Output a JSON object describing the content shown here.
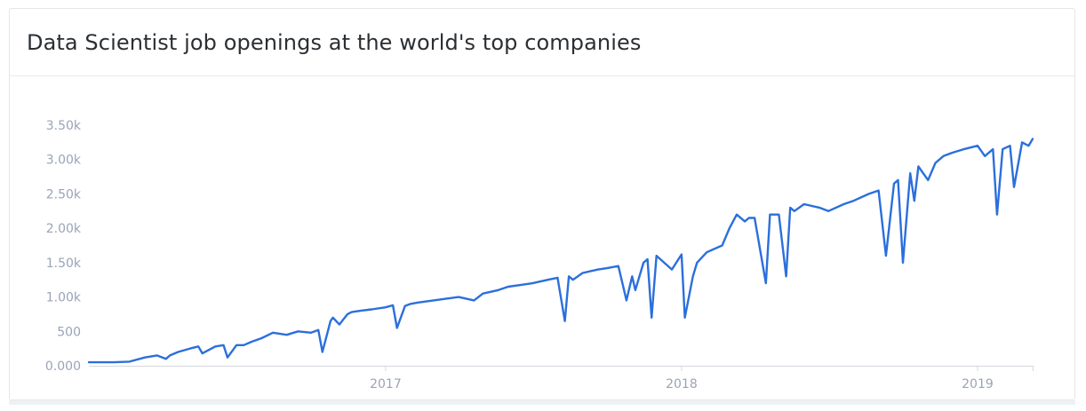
{
  "card": {
    "title": "Data Scientist job openings at the world's top companies"
  },
  "colors": {
    "line": "#2b6fdc",
    "axis_text": "#9aa3b8",
    "axis_line": "#d3d8e0"
  },
  "chart_data": {
    "type": "line",
    "title": "Data Scientist job openings at the world's top companies",
    "xlabel": "",
    "ylabel": "",
    "x_range": [
      "2016-01-01",
      "2019-03-10"
    ],
    "ylim": [
      0,
      3500
    ],
    "y_ticks": [
      0,
      500,
      1000,
      1500,
      2000,
      2500,
      3000,
      3500
    ],
    "y_tick_labels": [
      "0.000",
      "500",
      "1.00k",
      "1.50k",
      "2.00k",
      "2.50k",
      "3.00k",
      "3.50k"
    ],
    "x_ticks": [
      "2017-01-01",
      "2018-01-01",
      "2019-01-01"
    ],
    "x_tick_labels": [
      "2017",
      "2018",
      "2019"
    ],
    "grid": false,
    "legend": "none",
    "series": [
      {
        "x": [
          "2016-01-01",
          "2016-02-01",
          "2016-02-20",
          "2016-03-10",
          "2016-03-25",
          "2016-04-05",
          "2016-04-10",
          "2016-04-20",
          "2016-05-05",
          "2016-05-15",
          "2016-05-20",
          "2016-06-05",
          "2016-06-15",
          "2016-06-20",
          "2016-07-01",
          "2016-07-10",
          "2016-07-20",
          "2016-08-01",
          "2016-08-15",
          "2016-09-01",
          "2016-09-15",
          "2016-10-01",
          "2016-10-10",
          "2016-10-15",
          "2016-10-25",
          "2016-10-28",
          "2016-11-05",
          "2016-11-15",
          "2016-11-20",
          "2016-12-01",
          "2016-12-15",
          "2017-01-01",
          "2017-01-10",
          "2017-01-15",
          "2017-01-25",
          "2017-02-01",
          "2017-02-10",
          "2017-03-01",
          "2017-03-20",
          "2017-04-01",
          "2017-04-20",
          "2017-05-01",
          "2017-05-20",
          "2017-06-01",
          "2017-06-20",
          "2017-07-01",
          "2017-07-20",
          "2017-08-01",
          "2017-08-10",
          "2017-08-15",
          "2017-08-20",
          "2017-09-01",
          "2017-09-20",
          "2017-10-01",
          "2017-10-15",
          "2017-10-25",
          "2017-11-01",
          "2017-11-05",
          "2017-11-15",
          "2017-11-20",
          "2017-11-25",
          "2017-12-01",
          "2017-12-20",
          "2018-01-01",
          "2018-01-05",
          "2018-01-15",
          "2018-01-20",
          "2018-02-01",
          "2018-02-20",
          "2018-03-01",
          "2018-03-10",
          "2018-03-20",
          "2018-03-25",
          "2018-04-01",
          "2018-04-15",
          "2018-04-20",
          "2018-05-01",
          "2018-05-10",
          "2018-05-15",
          "2018-05-20",
          "2018-06-01",
          "2018-06-20",
          "2018-07-01",
          "2018-07-20",
          "2018-08-01",
          "2018-08-20",
          "2018-09-01",
          "2018-09-10",
          "2018-09-20",
          "2018-09-25",
          "2018-10-01",
          "2018-10-10",
          "2018-10-15",
          "2018-10-20",
          "2018-11-01",
          "2018-11-10",
          "2018-11-20",
          "2018-12-01",
          "2018-12-15",
          "2019-01-01",
          "2019-01-10",
          "2019-01-20",
          "2019-01-25",
          "2019-02-01",
          "2019-02-10",
          "2019-02-15",
          "2019-02-25",
          "2019-03-05",
          "2019-03-10"
        ],
        "y": [
          50,
          50,
          60,
          120,
          150,
          100,
          150,
          200,
          250,
          280,
          180,
          280,
          300,
          120,
          300,
          300,
          350,
          400,
          480,
          450,
          500,
          480,
          520,
          200,
          650,
          700,
          600,
          750,
          780,
          800,
          820,
          850,
          880,
          550,
          870,
          900,
          920,
          950,
          980,
          1000,
          950,
          1050,
          1100,
          1150,
          1180,
          1200,
          1250,
          1280,
          650,
          1300,
          1250,
          1350,
          1400,
          1420,
          1450,
          950,
          1300,
          1100,
          1500,
          1550,
          700,
          1600,
          1400,
          1620,
          700,
          1300,
          1500,
          1650,
          1750,
          2000,
          2200,
          2100,
          2150,
          2150,
          1200,
          2200,
          2200,
          1300,
          2300,
          2250,
          2350,
          2300,
          2250,
          2350,
          2400,
          2500,
          2550,
          1600,
          2650,
          2700,
          1500,
          2800,
          2400,
          2900,
          2700,
          2950,
          3050,
          3100,
          3150,
          3200,
          3050,
          3150,
          2200,
          3150,
          3200,
          2600,
          3250,
          3200,
          3300
        ]
      }
    ]
  }
}
